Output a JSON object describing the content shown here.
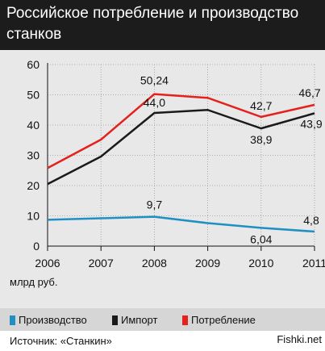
{
  "title": "Российское потребление и производство станков",
  "unit_label": "млрд руб.",
  "source": "Источник: «Станкин»",
  "watermark": "Fishki.net",
  "chart_data": {
    "type": "line",
    "x": [
      "2006",
      "2007",
      "2008",
      "2009",
      "2010",
      "2011"
    ],
    "ylim": [
      0,
      60
    ],
    "yticks": [
      0,
      10,
      20,
      30,
      40,
      50,
      60
    ],
    "grid": true,
    "legend_position": "bottom",
    "series": [
      {
        "name": "Производство",
        "color": "#1f8fc4",
        "values": [
          8.7,
          9.2,
          9.7,
          7.6,
          6.04,
          4.8
        ],
        "labels": [
          null,
          null,
          "9,7",
          null,
          "6,04",
          "4,8"
        ]
      },
      {
        "name": "Импорт",
        "color": "#1a1a1a",
        "values": [
          20.5,
          29.6,
          44.0,
          45.0,
          38.9,
          43.9
        ],
        "labels": [
          null,
          null,
          "44,0",
          null,
          "38,9",
          "43,9"
        ]
      },
      {
        "name": "Потребление",
        "color": "#e4211c",
        "values": [
          25.8,
          35.2,
          50.24,
          49.0,
          42.7,
          46.7
        ],
        "labels": [
          null,
          null,
          "50,24",
          null,
          "42,7",
          "46,7"
        ]
      }
    ]
  }
}
